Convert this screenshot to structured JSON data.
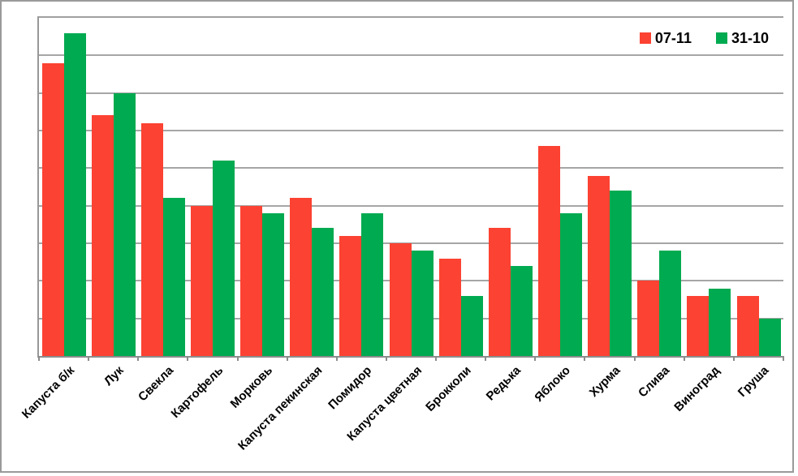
{
  "chart_data": {
    "type": "bar",
    "title": "",
    "xlabel": "",
    "ylabel": "",
    "categories": [
      "Капуста б/к",
      "Лук",
      "Свекла",
      "Картофель",
      "Морковь",
      "Капуста пекинская",
      "Помидор",
      "Капуста цветная",
      "Брокколи",
      "Редька",
      "Яблоко",
      "Хурма",
      "Слива",
      "Виноград",
      "Груша"
    ],
    "series": [
      {
        "name": "07-11",
        "color": "#fc4232",
        "values": [
          78,
          64,
          62,
          40,
          40,
          42,
          32,
          30,
          26,
          34,
          56,
          48,
          20,
          16,
          16
        ]
      },
      {
        "name": "31-10",
        "color": "#00aa50",
        "values": [
          86,
          70,
          42,
          52,
          38,
          34,
          38,
          28,
          16,
          24,
          38,
          44,
          28,
          18,
          10
        ]
      }
    ],
    "ylim": [
      0,
      90
    ],
    "gridline_step": 10,
    "grid": true,
    "y_axis_labels_visible": false,
    "legend_position": "top-right",
    "x_label_rotation_deg": 45
  },
  "colors": {
    "series_red": "#fc4232",
    "series_green": "#00aa50",
    "gridline": "#a6a6a6",
    "axis": "#8c8c8c",
    "outer_frame": "#9a9a9a",
    "background": "#ffffff",
    "text": "#000000"
  }
}
